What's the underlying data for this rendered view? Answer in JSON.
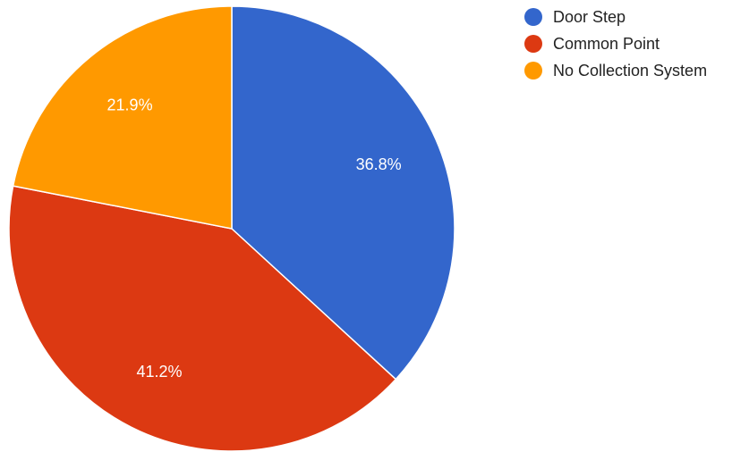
{
  "chart_data": {
    "type": "pie",
    "categories": [
      "Door Step",
      "Common Point",
      "No Collection System"
    ],
    "values": [
      36.8,
      41.2,
      21.9
    ],
    "labels": [
      "36.8%",
      "41.2%",
      "21.9%"
    ],
    "colors": [
      "#3366cc",
      "#dc3912",
      "#ff9900"
    ],
    "start_angle_deg": 0,
    "direction": "clockwise",
    "legend": {
      "placement": "top-right",
      "items": [
        "Door Step",
        "Common Point",
        "No Collection System"
      ]
    }
  }
}
